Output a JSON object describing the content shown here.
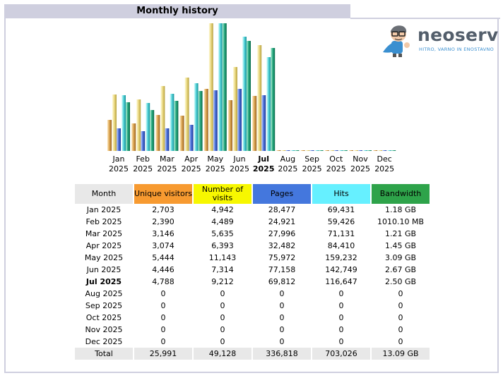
{
  "header": {
    "title": "Monthly history"
  },
  "logo": {
    "name": "neoserv",
    "tagline": "HITRO, VARNO IN ENOSTAVNO"
  },
  "colors": {
    "unique_visitors": "#f79a30",
    "visits": "#f7f700",
    "pages": "#4477dd",
    "hits": "#66f0ff",
    "bandwidth": "#2ea34a",
    "month_header": "#e8e8e8",
    "title_bar": "#cfcfdf"
  },
  "table": {
    "headers": [
      "Month",
      "Unique visitors",
      "Number of visits",
      "Pages",
      "Hits",
      "Bandwidth"
    ],
    "rows": [
      {
        "month": "Jan 2025",
        "unique": "2,703",
        "visits": "4,942",
        "pages": "28,477",
        "hits": "69,431",
        "bandwidth": "1.18 GB"
      },
      {
        "month": "Feb 2025",
        "unique": "2,390",
        "visits": "4,489",
        "pages": "24,921",
        "hits": "59,426",
        "bandwidth": "1010.10 MB"
      },
      {
        "month": "Mar 2025",
        "unique": "3,146",
        "visits": "5,635",
        "pages": "27,996",
        "hits": "71,131",
        "bandwidth": "1.21 GB"
      },
      {
        "month": "Apr 2025",
        "unique": "3,074",
        "visits": "6,393",
        "pages": "32,482",
        "hits": "84,410",
        "bandwidth": "1.45 GB"
      },
      {
        "month": "May 2025",
        "unique": "5,444",
        "visits": "11,143",
        "pages": "75,972",
        "hits": "159,232",
        "bandwidth": "3.09 GB"
      },
      {
        "month": "Jun 2025",
        "unique": "4,446",
        "visits": "7,314",
        "pages": "77,158",
        "hits": "142,749",
        "bandwidth": "2.67 GB"
      },
      {
        "month": "Jul 2025",
        "unique": "4,788",
        "visits": "9,212",
        "pages": "69,812",
        "hits": "116,647",
        "bandwidth": "2.50 GB",
        "current": true
      },
      {
        "month": "Aug 2025",
        "unique": "0",
        "visits": "0",
        "pages": "0",
        "hits": "0",
        "bandwidth": "0"
      },
      {
        "month": "Sep 2025",
        "unique": "0",
        "visits": "0",
        "pages": "0",
        "hits": "0",
        "bandwidth": "0"
      },
      {
        "month": "Oct 2025",
        "unique": "0",
        "visits": "0",
        "pages": "0",
        "hits": "0",
        "bandwidth": "0"
      },
      {
        "month": "Nov 2025",
        "unique": "0",
        "visits": "0",
        "pages": "0",
        "hits": "0",
        "bandwidth": "0"
      },
      {
        "month": "Dec 2025",
        "unique": "0",
        "visits": "0",
        "pages": "0",
        "hits": "0",
        "bandwidth": "0"
      }
    ],
    "total": {
      "month": "Total",
      "unique": "25,991",
      "visits": "49,128",
      "pages": "336,818",
      "hits": "703,026",
      "bandwidth": "13.09 GB"
    }
  },
  "chart_data": {
    "type": "bar",
    "categories": [
      [
        "Jan",
        "2025"
      ],
      [
        "Feb",
        "2025"
      ],
      [
        "Mar",
        "2025"
      ],
      [
        "Apr",
        "2025"
      ],
      [
        "May",
        "2025"
      ],
      [
        "Jun",
        "2025"
      ],
      [
        "Jul",
        "2025"
      ],
      [
        "Aug",
        "2025"
      ],
      [
        "Sep",
        "2025"
      ],
      [
        "Oct",
        "2025"
      ],
      [
        "Nov",
        "2025"
      ],
      [
        "Dec",
        "2025"
      ]
    ],
    "current_index": 6,
    "series": [
      {
        "key": "unique",
        "values": [
          2703,
          2390,
          3146,
          3074,
          5444,
          4446,
          4788,
          0,
          0,
          0,
          0,
          0
        ]
      },
      {
        "key": "visits",
        "values": [
          4942,
          4489,
          5635,
          6393,
          11143,
          7314,
          9212,
          0,
          0,
          0,
          0,
          0
        ]
      },
      {
        "key": "pages",
        "values": [
          28477,
          24921,
          27996,
          32482,
          75972,
          77158,
          69812,
          0,
          0,
          0,
          0,
          0
        ]
      },
      {
        "key": "hits",
        "values": [
          69431,
          59426,
          71131,
          84410,
          159232,
          142749,
          116647,
          0,
          0,
          0,
          0,
          0
        ]
      },
      {
        "key": "bandwidth",
        "values": [
          1.18,
          0.986,
          1.21,
          1.45,
          3.09,
          2.67,
          2.5,
          0,
          0,
          0,
          0,
          0
        ]
      }
    ]
  }
}
